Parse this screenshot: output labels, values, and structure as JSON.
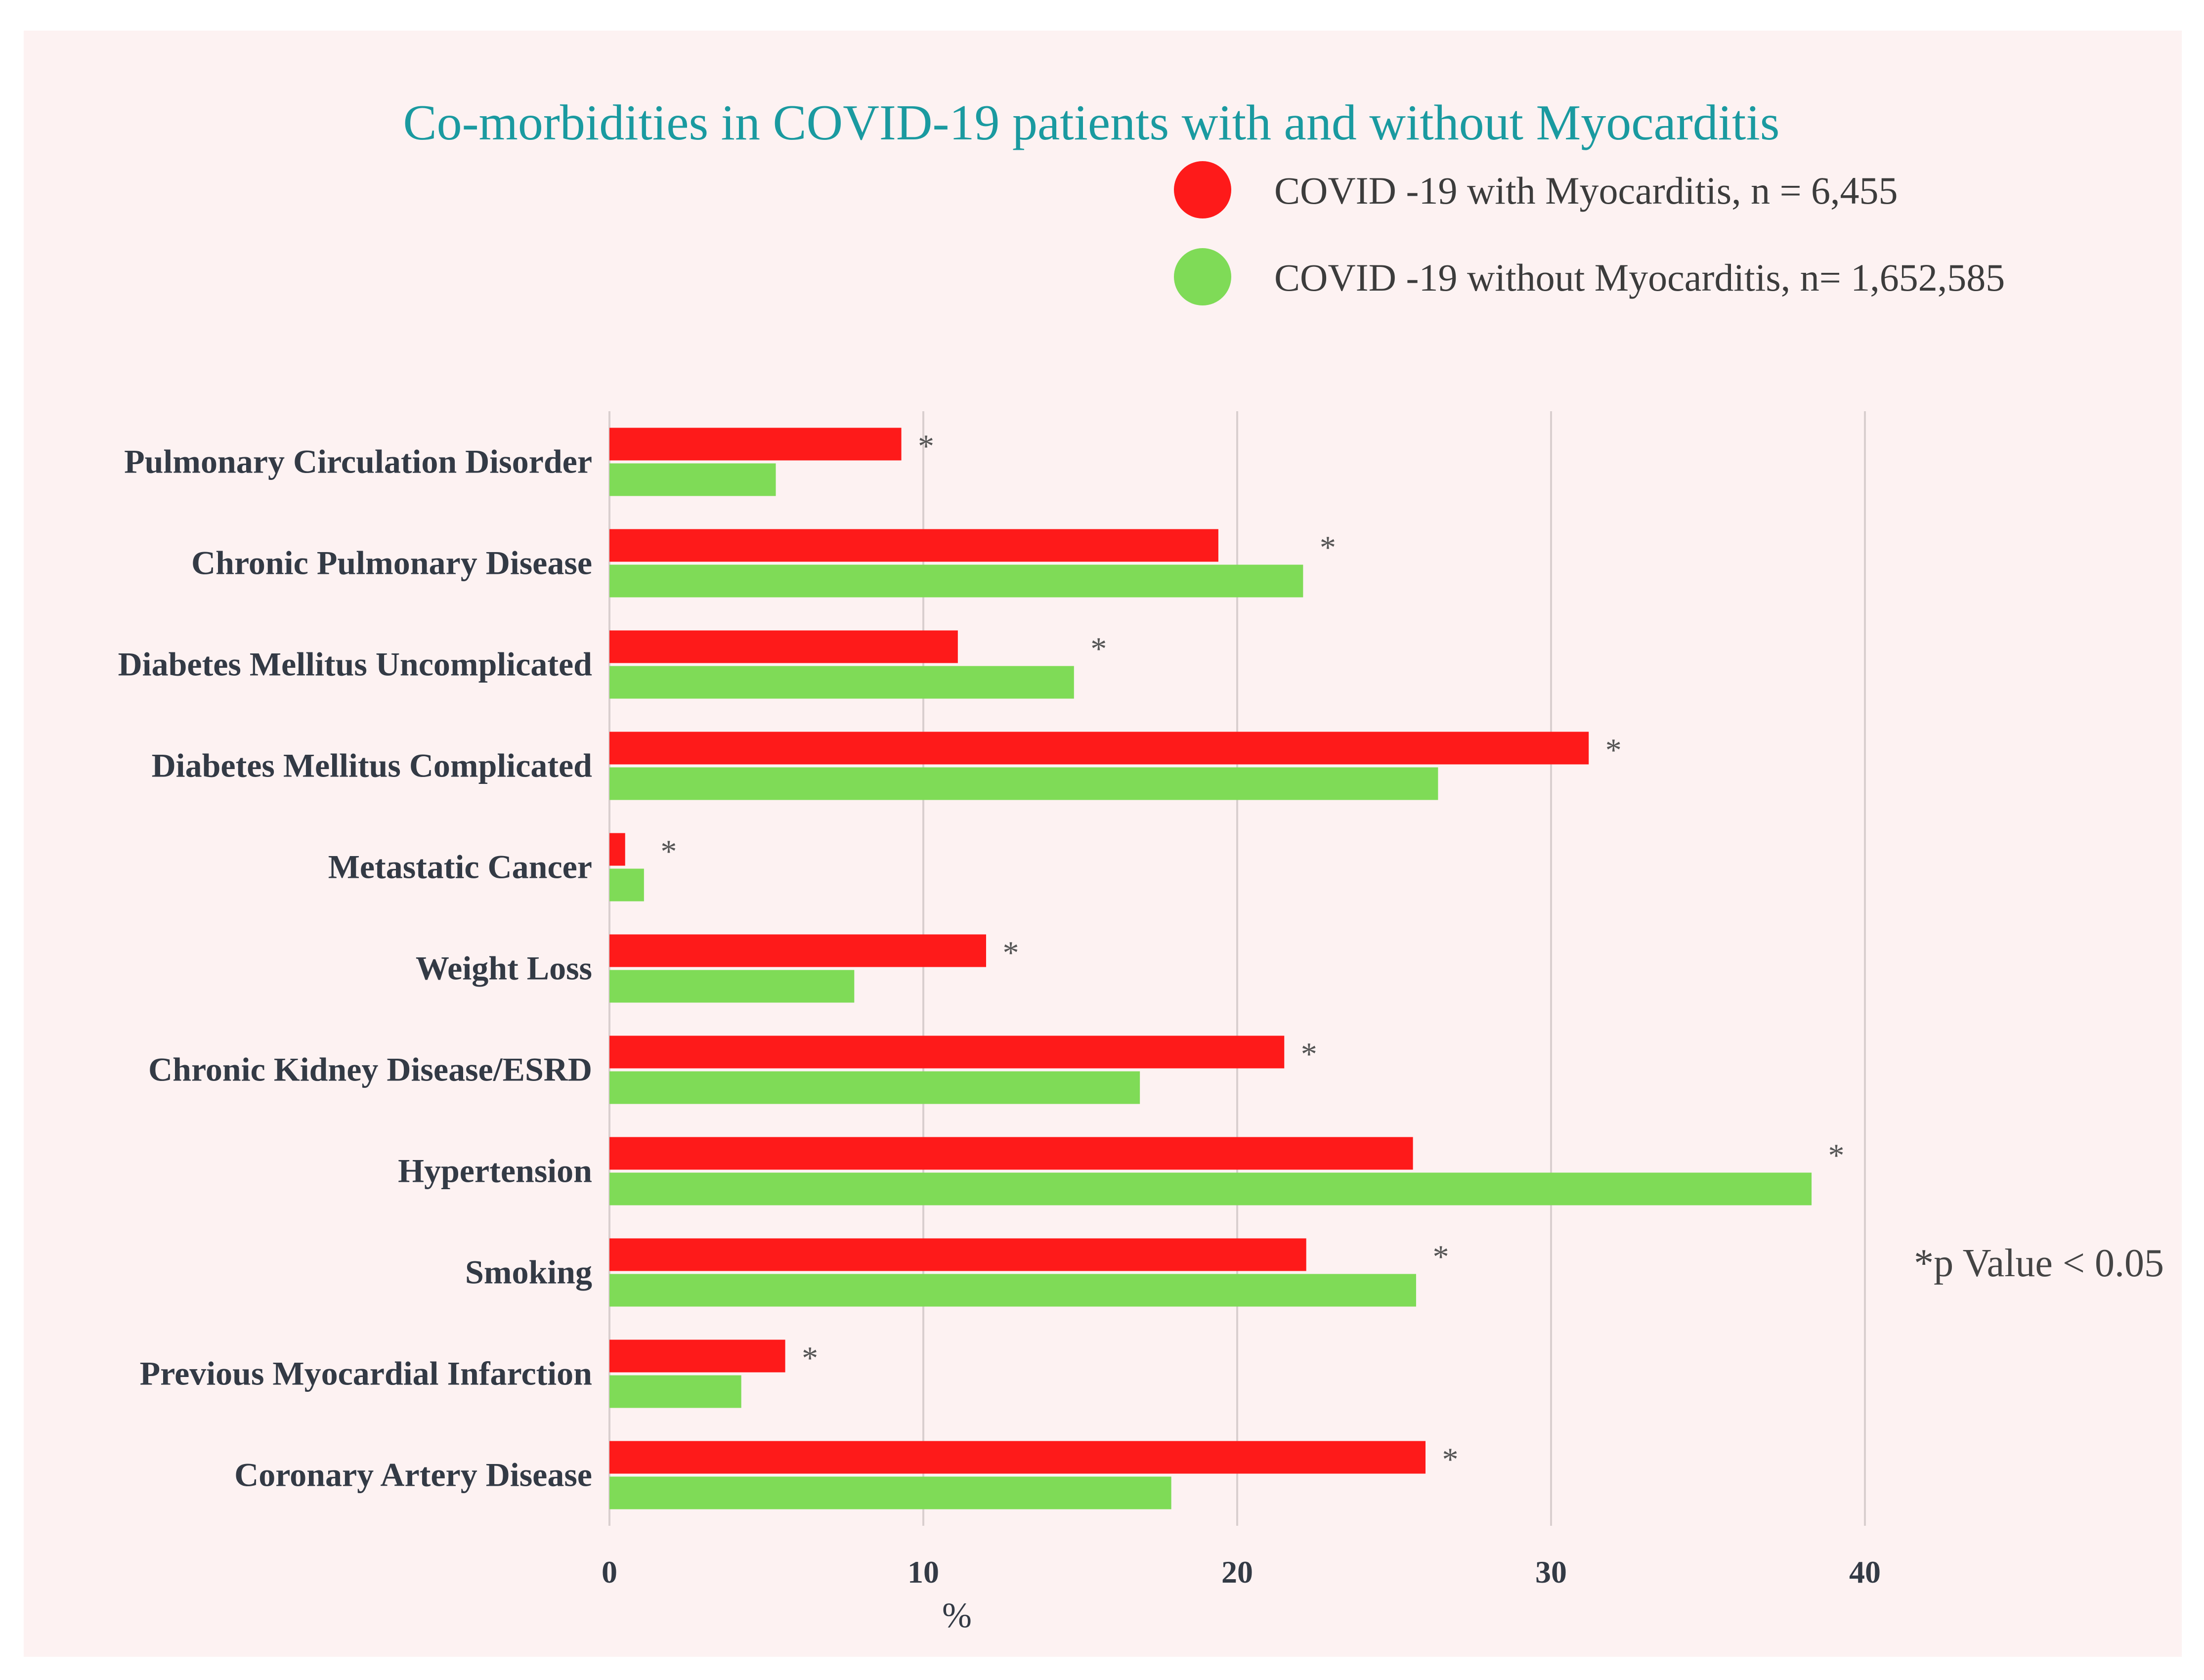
{
  "chart_data": {
    "type": "bar",
    "orientation": "horizontal",
    "title": "Co-morbidities in COVID-19 patients with and without Myocarditis",
    "xlabel": "%",
    "ylabel": "",
    "xlim": [
      0,
      40
    ],
    "xticks": [
      "0",
      "10",
      "20",
      "30",
      "40"
    ],
    "grid": "vertical",
    "legend_position": "top-right",
    "categories": [
      "Pulmonary Circulation Disorder",
      "Chronic Pulmonary Disease",
      "Diabetes Mellitus Uncomplicated",
      "Diabetes Mellitus Complicated",
      "Metastatic Cancer",
      "Weight Loss",
      "Chronic Kidney Disease/ESRD",
      "Hypertension",
      "Smoking",
      "Previous Myocardial Infarction",
      "Coronary Artery Disease"
    ],
    "series": [
      {
        "name": "COVID -19 with Myocarditis, n = 6,455",
        "color": "#fe1a1a",
        "values": [
          9.3,
          19.4,
          11.1,
          31.2,
          0.5,
          12.0,
          21.5,
          25.6,
          22.2,
          5.6,
          26.0
        ]
      },
      {
        "name": "COVID -19 without Myocarditis, n= 1,652,585",
        "color": "#7fdb57",
        "values": [
          5.3,
          22.1,
          14.8,
          26.4,
          1.1,
          7.8,
          16.9,
          38.3,
          25.7,
          4.2,
          17.9
        ]
      }
    ],
    "significance_marker": "*",
    "significance": [
      true,
      true,
      true,
      true,
      true,
      true,
      true,
      true,
      true,
      true,
      true
    ],
    "annotation": "*p Value < 0.05"
  }
}
